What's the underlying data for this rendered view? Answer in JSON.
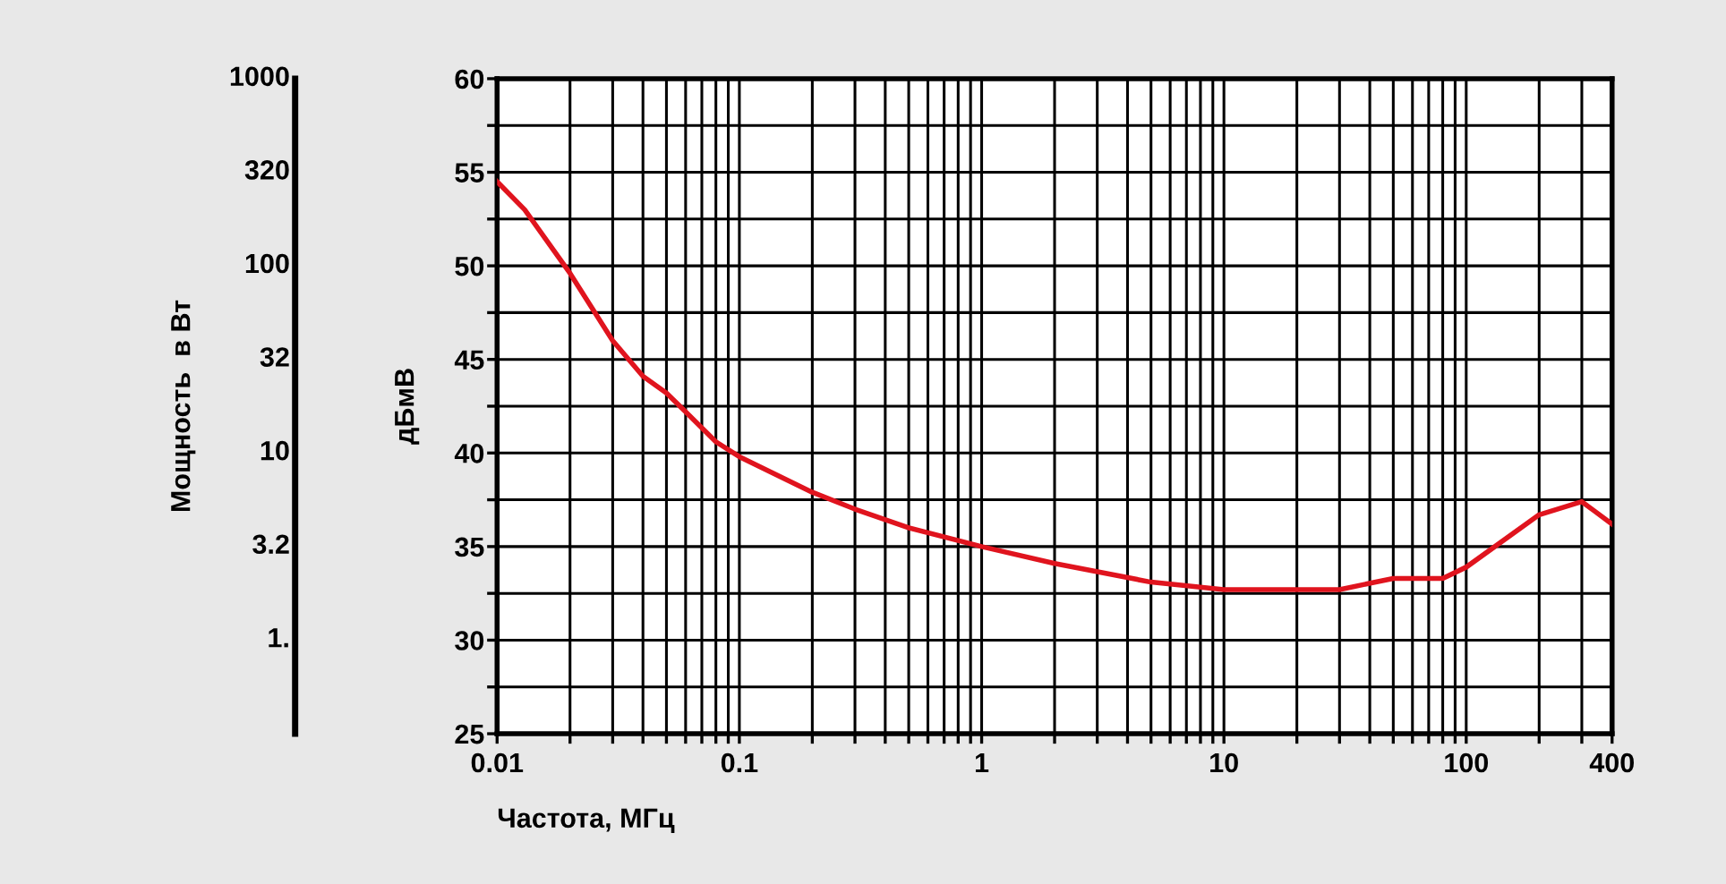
{
  "chart_data": [
    {
      "type": "other",
      "ylabel": "Мощность  в Вт",
      "annotations": [
        "1000",
        "320",
        "100",
        "32",
        "10",
        "3.2",
        "1."
      ]
    },
    {
      "type": "line",
      "xlabel": "Частота, МГц",
      "ylabel": "дБмВ",
      "log": "x",
      "x": [
        0.01,
        0.013,
        0.02,
        0.03,
        0.04,
        0.05,
        0.06,
        0.08,
        0.1,
        0.2,
        0.3,
        0.5,
        1,
        2,
        5,
        10,
        20,
        30,
        50,
        80,
        100,
        200,
        300,
        400
      ],
      "series": [
        {
          "color": "#e0141e",
          "values": [
            54.5,
            53.0,
            49.6,
            46.0,
            44.1,
            43.2,
            42.2,
            40.6,
            39.8,
            37.9,
            37.0,
            36.0,
            35.0,
            34.1,
            33.1,
            32.7,
            32.7,
            32.7,
            33.3,
            33.3,
            33.9,
            36.7,
            37.4,
            36.2
          ]
        }
      ],
      "xlim": [
        0.01,
        400
      ],
      "xticks": [
        {
          "value": 0.01,
          "label": "0.01"
        },
        {
          "value": 0.02,
          "label": null
        },
        {
          "value": 0.03,
          "label": null
        },
        {
          "value": 0.04,
          "label": null
        },
        {
          "value": 0.05,
          "label": null
        },
        {
          "value": 0.06,
          "label": null
        },
        {
          "value": 0.07,
          "label": null
        },
        {
          "value": 0.08,
          "label": null
        },
        {
          "value": 0.09,
          "label": null
        },
        {
          "value": 0.1,
          "label": "0.1"
        },
        {
          "value": 0.2,
          "label": null
        },
        {
          "value": 0.3,
          "label": null
        },
        {
          "value": 0.4,
          "label": null
        },
        {
          "value": 0.5,
          "label": null
        },
        {
          "value": 0.6,
          "label": null
        },
        {
          "value": 0.7,
          "label": null
        },
        {
          "value": 0.8,
          "label": null
        },
        {
          "value": 0.9,
          "label": null
        },
        1,
        {
          "value": 2,
          "label": null
        },
        {
          "value": 3,
          "label": null
        },
        {
          "value": 4,
          "label": null
        },
        {
          "value": 5,
          "label": null
        },
        {
          "value": 6,
          "label": null
        },
        {
          "value": 7,
          "label": null
        },
        {
          "value": 8,
          "label": null
        },
        {
          "value": 9,
          "label": null
        },
        10,
        {
          "value": 20,
          "label": null
        },
        {
          "value": 30,
          "label": null
        },
        {
          "value": 40,
          "label": null
        },
        {
          "value": 50,
          "label": null
        },
        {
          "value": 60,
          "label": null
        },
        {
          "value": 70,
          "label": null
        },
        {
          "value": 80,
          "label": null
        },
        {
          "value": 90,
          "label": null
        },
        100,
        {
          "value": 200,
          "label": null
        },
        {
          "value": 300,
          "label": null
        },
        400
      ],
      "ylim": [
        25,
        60
      ],
      "yticks": [
        25,
        {
          "value": 27.5,
          "label": null
        },
        30,
        {
          "value": 32.5,
          "label": null
        },
        35,
        {
          "value": 37.5,
          "label": null
        },
        40,
        {
          "value": 42.5,
          "label": null
        },
        45,
        {
          "value": 47.5,
          "label": null
        },
        50,
        {
          "value": 52.5,
          "label": null
        },
        55,
        {
          "value": 57.5,
          "label": null
        },
        60
      ],
      "grid": true,
      "line_style": "solid",
      "marker": "none"
    }
  ]
}
